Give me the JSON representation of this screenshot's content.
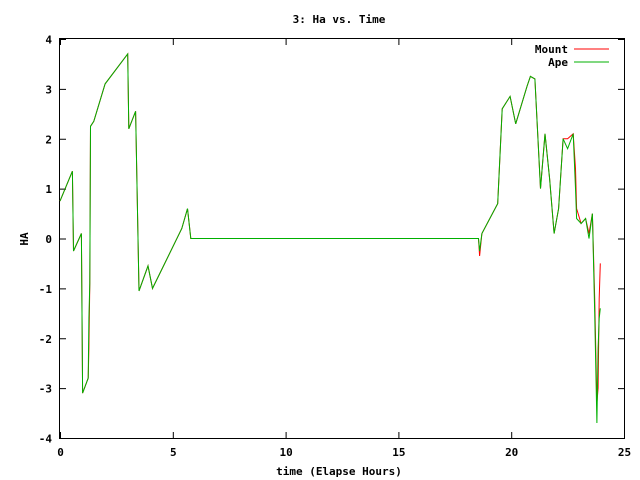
{
  "chart_data": {
    "type": "line",
    "title": "3: Ha vs. Time",
    "xlabel": "time (Elapse Hours)",
    "ylabel": "HA",
    "xlim": [
      0,
      25
    ],
    "ylim": [
      -4,
      4
    ],
    "xticks": [
      "0",
      "5",
      "10",
      "15",
      "20",
      "25"
    ],
    "yticks": [
      "-4",
      "-3",
      "-2",
      "-1",
      "0",
      "1",
      "2",
      "3",
      "4"
    ],
    "grid": false,
    "legend_position": "top-right",
    "series": [
      {
        "name": "Mount",
        "color": "#ff0000",
        "points": [
          [
            0,
            0.75
          ],
          [
            0.55,
            1.35
          ],
          [
            0.6,
            -0.25
          ],
          [
            0.95,
            0.1
          ],
          [
            1.0,
            -3.1
          ],
          [
            1.25,
            -2.8
          ],
          [
            1.28,
            -2.2
          ],
          [
            1.32,
            -0.9
          ],
          [
            1.35,
            2.25
          ],
          [
            1.5,
            2.35
          ],
          [
            2.0,
            3.1
          ],
          [
            3.0,
            3.7
          ],
          [
            3.05,
            2.2
          ],
          [
            3.35,
            2.55
          ],
          [
            3.5,
            -1.05
          ],
          [
            3.9,
            -0.55
          ],
          [
            4.1,
            -1.0
          ],
          [
            5.4,
            0.2
          ],
          [
            5.65,
            0.6
          ],
          [
            5.8,
            0.0
          ],
          [
            18.55,
            0.0
          ],
          [
            18.6,
            -0.35
          ],
          [
            18.7,
            0.1
          ],
          [
            19.4,
            0.7
          ],
          [
            19.6,
            2.6
          ],
          [
            19.95,
            2.85
          ],
          [
            20.2,
            2.3
          ],
          [
            20.7,
            3.05
          ],
          [
            20.85,
            3.25
          ],
          [
            21.05,
            3.2
          ],
          [
            21.3,
            1.0
          ],
          [
            21.5,
            2.1
          ],
          [
            21.7,
            1.2
          ],
          [
            21.9,
            0.1
          ],
          [
            22.1,
            0.6
          ],
          [
            22.3,
            2.0
          ],
          [
            22.5,
            2.0
          ],
          [
            22.75,
            2.1
          ],
          [
            22.85,
            1.4
          ],
          [
            22.9,
            0.6
          ],
          [
            23.1,
            0.3
          ],
          [
            23.3,
            0.4
          ],
          [
            23.45,
            0.1
          ],
          [
            23.6,
            0.5
          ],
          [
            23.7,
            -1.2
          ],
          [
            23.8,
            -3.3
          ],
          [
            23.85,
            -3.0
          ],
          [
            23.9,
            -1.2
          ],
          [
            23.95,
            -0.5
          ]
        ]
      },
      {
        "name": "Ape",
        "color": "#00b000",
        "points": [
          [
            0,
            0.75
          ],
          [
            0.55,
            1.35
          ],
          [
            0.6,
            -0.25
          ],
          [
            0.95,
            0.1
          ],
          [
            1.0,
            -3.1
          ],
          [
            1.25,
            -2.8
          ],
          [
            1.28,
            -1.6
          ],
          [
            1.32,
            -0.9
          ],
          [
            1.35,
            2.25
          ],
          [
            1.5,
            2.35
          ],
          [
            2.0,
            3.1
          ],
          [
            3.0,
            3.7
          ],
          [
            3.05,
            2.2
          ],
          [
            3.35,
            2.55
          ],
          [
            3.5,
            -1.05
          ],
          [
            3.9,
            -0.55
          ],
          [
            4.1,
            -1.0
          ],
          [
            5.4,
            0.2
          ],
          [
            5.65,
            0.6
          ],
          [
            5.8,
            0.0
          ],
          [
            18.55,
            0.0
          ],
          [
            18.6,
            -0.25
          ],
          [
            18.7,
            0.1
          ],
          [
            19.4,
            0.7
          ],
          [
            19.6,
            2.6
          ],
          [
            19.95,
            2.85
          ],
          [
            20.2,
            2.3
          ],
          [
            20.7,
            3.05
          ],
          [
            20.85,
            3.25
          ],
          [
            21.05,
            3.2
          ],
          [
            21.3,
            1.0
          ],
          [
            21.5,
            2.1
          ],
          [
            21.7,
            1.2
          ],
          [
            21.9,
            0.1
          ],
          [
            22.1,
            0.6
          ],
          [
            22.3,
            2.0
          ],
          [
            22.5,
            1.8
          ],
          [
            22.75,
            2.1
          ],
          [
            22.85,
            1.0
          ],
          [
            22.9,
            0.4
          ],
          [
            23.1,
            0.3
          ],
          [
            23.3,
            0.4
          ],
          [
            23.45,
            0.0
          ],
          [
            23.6,
            0.5
          ],
          [
            23.7,
            -1.5
          ],
          [
            23.8,
            -3.7
          ],
          [
            23.85,
            -2.2
          ],
          [
            23.9,
            -1.6
          ],
          [
            23.95,
            -1.4
          ]
        ]
      }
    ]
  }
}
